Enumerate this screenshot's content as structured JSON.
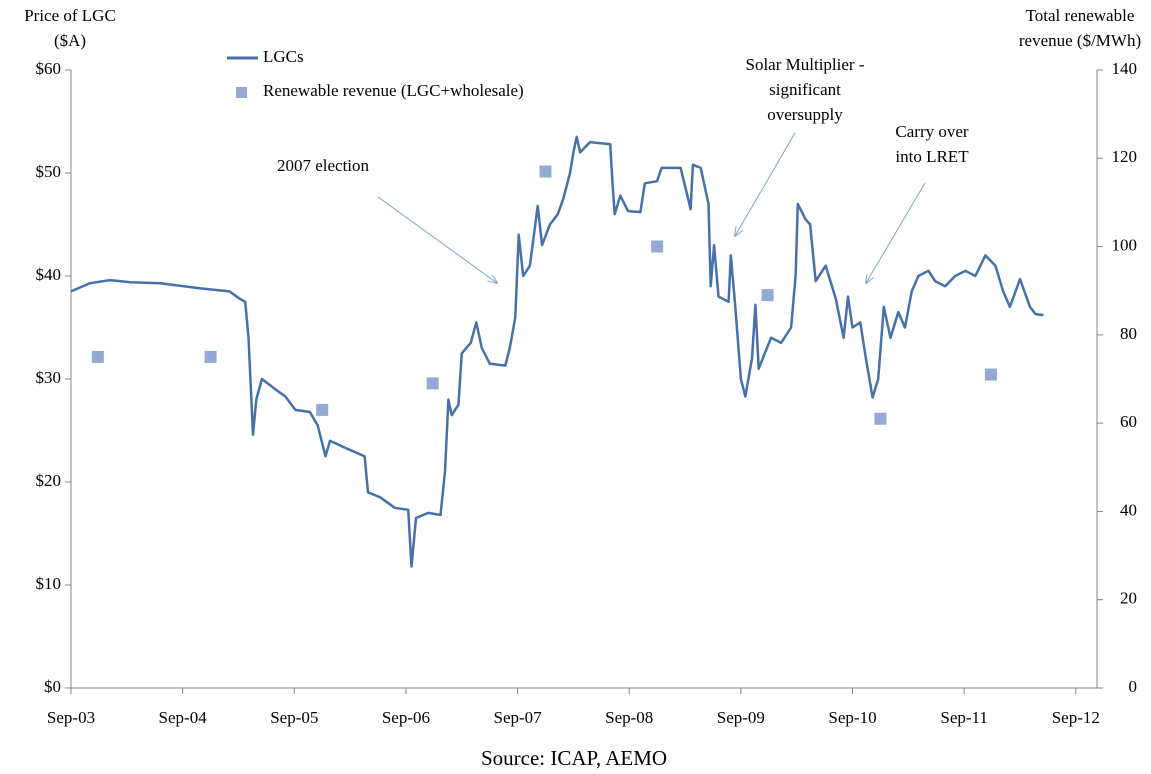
{
  "chart_data": {
    "type": "line",
    "y_label_lines": [
      "Price of LGC",
      "($A)"
    ],
    "y2_label_lines": [
      "Total renewable",
      "revenue ($/MWh)"
    ],
    "source": "Source: ICAP, AEMO",
    "xlim": [
      2003.67,
      2012.86
    ],
    "xticks": [
      {
        "value": 2003.67,
        "label": "Sep-03"
      },
      {
        "value": 2004.67,
        "label": "Sep-04"
      },
      {
        "value": 2005.67,
        "label": "Sep-05"
      },
      {
        "value": 2006.67,
        "label": "Sep-06"
      },
      {
        "value": 2007.67,
        "label": "Sep-07"
      },
      {
        "value": 2008.67,
        "label": "Sep-08"
      },
      {
        "value": 2009.67,
        "label": "Sep-09"
      },
      {
        "value": 2010.67,
        "label": "Sep-10"
      },
      {
        "value": 2011.67,
        "label": "Sep-11"
      },
      {
        "value": 2012.67,
        "label": "Sep-12"
      }
    ],
    "ylim": [
      0,
      60
    ],
    "yticks": [
      {
        "value": 0,
        "label": "$0"
      },
      {
        "value": 10,
        "label": "$10"
      },
      {
        "value": 20,
        "label": "$20"
      },
      {
        "value": 30,
        "label": "$30"
      },
      {
        "value": 40,
        "label": "$40"
      },
      {
        "value": 50,
        "label": "$50"
      },
      {
        "value": 60,
        "label": "$60"
      }
    ],
    "y2lim": [
      0,
      140
    ],
    "y2ticks": [
      0,
      20,
      40,
      60,
      80,
      100,
      120,
      140
    ],
    "legend": "top-left",
    "series": [
      {
        "name": "LGCs",
        "type": "line",
        "color": "#4671aa",
        "x": [
          2003.67,
          2003.84,
          2004.02,
          2004.2,
          2004.47,
          2004.83,
          2005.09,
          2005.18,
          2005.23,
          2005.26,
          2005.3,
          2005.33,
          2005.38,
          2005.5,
          2005.59,
          2005.68,
          2005.81,
          2005.88,
          2005.95,
          2005.99,
          2006.13,
          2006.3,
          2006.33,
          2006.44,
          2006.57,
          2006.69,
          2006.72,
          2006.76,
          2006.87,
          2006.98,
          2007.02,
          2007.05,
          2007.08,
          2007.14,
          2007.17,
          2007.25,
          2007.3,
          2007.35,
          2007.42,
          2007.56,
          2007.6,
          2007.65,
          2007.68,
          2007.72,
          2007.78,
          2007.85,
          2007.89,
          2007.96,
          2008.03,
          2008.08,
          2008.14,
          2008.17,
          2008.2,
          2008.23,
          2008.32,
          2008.5,
          2008.52,
          2008.54,
          2008.59,
          2008.66,
          2008.77,
          2008.81,
          2008.92,
          2008.96,
          2009.13,
          2009.22,
          2009.24,
          2009.31,
          2009.38,
          2009.4,
          2009.43,
          2009.47,
          2009.56,
          2009.58,
          2009.62,
          2009.67,
          2009.71,
          2009.77,
          2009.8,
          2009.83,
          2009.94,
          2010.03,
          2010.12,
          2010.16,
          2010.18,
          2010.25,
          2010.29,
          2010.34,
          2010.43,
          2010.52,
          2010.59,
          2010.63,
          2010.67,
          2010.74,
          2010.79,
          2010.85,
          2010.9,
          2010.95,
          2011.01,
          2011.08,
          2011.14,
          2011.2,
          2011.26,
          2011.35,
          2011.41,
          2011.5,
          2011.59,
          2011.68,
          2011.77,
          2011.86,
          2011.95,
          2012.02,
          2012.08,
          2012.17,
          2012.26,
          2012.31,
          2012.38
        ],
        "values": [
          38.5,
          39.3,
          39.6,
          39.4,
          39.3,
          38.8,
          38.5,
          37.8,
          37.5,
          34,
          24.6,
          28,
          30,
          29,
          28.3,
          27,
          26.8,
          25.5,
          22.5,
          24,
          23.3,
          22.5,
          19,
          18.5,
          17.5,
          17.3,
          11.8,
          16.5,
          17,
          16.8,
          21,
          28,
          26.5,
          27.5,
          32.5,
          33.5,
          35.5,
          33,
          31.5,
          31.3,
          33,
          36,
          44,
          40,
          41,
          46.8,
          43,
          45,
          46,
          47.5,
          50,
          52,
          53.5,
          52,
          53,
          52.8,
          49,
          46,
          47.8,
          46.3,
          46.2,
          49,
          49.2,
          50.5,
          50.5,
          46.5,
          50.8,
          50.5,
          47,
          39,
          43,
          38,
          37.5,
          42,
          37,
          30,
          28.3,
          32,
          37.2,
          31,
          34,
          33.5,
          35,
          40,
          47,
          45.5,
          45,
          39.5,
          41,
          37.8,
          34,
          38,
          35,
          35.5,
          32,
          28.2,
          30,
          37,
          34,
          36.5,
          35,
          38.5,
          40,
          40.5,
          39.5,
          39,
          40,
          40.5,
          40,
          42,
          41,
          38.5,
          37,
          39.7,
          37,
          36.3,
          36.2
        ]
      },
      {
        "name": "Renewable revenue (LGC+wholesale)",
        "type": "scatter",
        "axis": "y2",
        "color": "#93aad4",
        "x": [
          2003.91,
          2004.92,
          2005.92,
          2006.91,
          2007.92,
          2008.92,
          2009.91,
          2010.92,
          2011.91
        ],
        "values": [
          75,
          75,
          63,
          69,
          117,
          100,
          89,
          61,
          71
        ]
      }
    ],
    "annotations": [
      {
        "lines": [
          "2007 election"
        ]
      },
      {
        "lines": [
          "Solar Multiplier  -",
          "significant",
          "oversupply"
        ]
      },
      {
        "lines": [
          "Carry over",
          "into LRET"
        ]
      }
    ]
  }
}
